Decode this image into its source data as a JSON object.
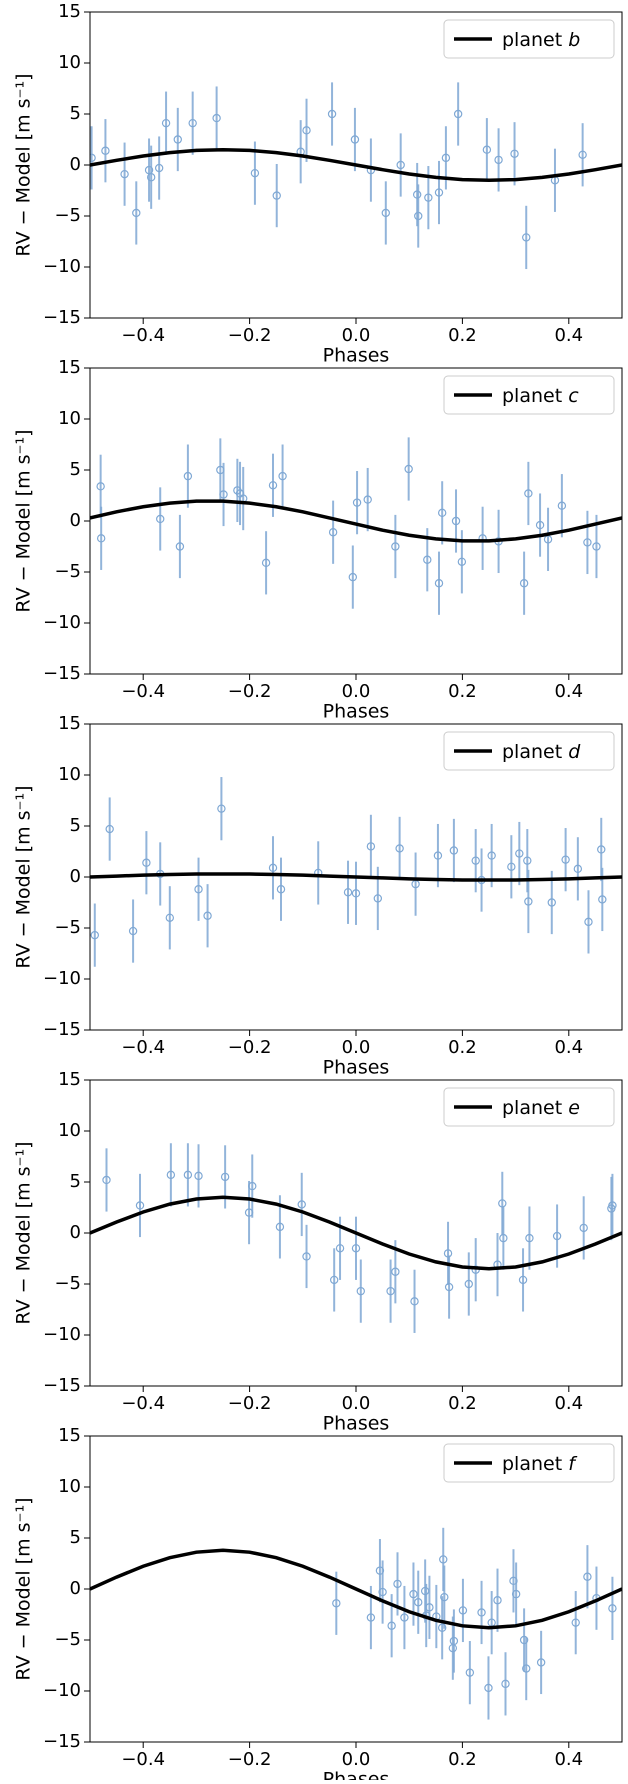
{
  "chart_data": [
    {
      "type": "scatter",
      "xlabel": "Phases",
      "ylabel": "RV − Model [m s⁻¹]",
      "xlim": [
        -0.5,
        0.5
      ],
      "ylim": [
        -15,
        15
      ],
      "xticks": [
        {
          "value": -0.4,
          "label": "−0.4"
        },
        {
          "value": -0.2,
          "label": "−0.2"
        },
        {
          "value": 0,
          "label": "0.0"
        },
        0.2,
        0.4
      ],
      "yticks": [
        {
          "value": -15,
          "label": "−15"
        },
        {
          "value": -10,
          "label": "−10"
        },
        {
          "value": -5,
          "label": "−5"
        },
        0,
        5,
        10,
        15
      ],
      "legend": "upper right",
      "points": {
        "color": "#7fa8d4",
        "x": [
          -0.497,
          -0.471,
          -0.435,
          -0.413,
          -0.389,
          -0.385,
          -0.37,
          -0.357,
          -0.335,
          -0.307,
          -0.262,
          -0.19,
          -0.149,
          -0.104,
          -0.093,
          -0.045,
          -0.002,
          0.028,
          0.056,
          0.084,
          0.115,
          0.117,
          0.136,
          0.156,
          0.169,
          0.192,
          0.246,
          0.268,
          0.298,
          0.32,
          0.374,
          0.426
        ],
        "values": [
          0.7,
          1.4,
          -0.9,
          -4.7,
          -0.5,
          -1.2,
          -0.3,
          4.1,
          2.5,
          4.1,
          4.6,
          -0.8,
          -3.0,
          1.3,
          3.4,
          5.0,
          2.5,
          -0.5,
          -4.7,
          0,
          -2.9,
          -5.0,
          -3.2,
          -2.7,
          0.7,
          5.0,
          1.5,
          0.5,
          1.1,
          -7.1,
          -1.5,
          1.0
        ],
        "errors": [
          3.1,
          3.1,
          3.1,
          3.1,
          3.1,
          3.1,
          3.1,
          3.1,
          3.1,
          3.1,
          3.1,
          3.1,
          3.1,
          3.1,
          3.1,
          3.1,
          3.1,
          3.1,
          3.1,
          3.1,
          3.1,
          3.1,
          3.1,
          3.1,
          3.1,
          3.1,
          3.1,
          3.1,
          3.1,
          3.1,
          3.1,
          3.1
        ]
      },
      "line": {
        "name": "planet b",
        "color": "#000000",
        "x": [
          -0.5,
          -0.45,
          -0.4,
          -0.35,
          -0.3,
          -0.25,
          -0.2,
          -0.15,
          -0.1,
          -0.05,
          0,
          0.05,
          0.1,
          0.15,
          0.2,
          0.25,
          0.3,
          0.35,
          0.4,
          0.45,
          0.5
        ],
        "values": [
          0,
          0.46,
          0.88,
          1.21,
          1.43,
          1.5,
          1.43,
          1.21,
          0.88,
          0.46,
          0,
          -0.46,
          -0.88,
          -1.21,
          -1.43,
          -1.5,
          -1.43,
          -1.21,
          -0.88,
          -0.46,
          0
        ]
      }
    },
    {
      "type": "scatter",
      "xlabel": "Phases",
      "ylabel": "RV − Model [m s⁻¹]",
      "xlim": [
        -0.5,
        0.5
      ],
      "ylim": [
        -15,
        15
      ],
      "xticks": [
        {
          "value": -0.4,
          "label": "−0.4"
        },
        {
          "value": -0.2,
          "label": "−0.2"
        },
        {
          "value": 0,
          "label": "0.0"
        },
        0.2,
        0.4
      ],
      "yticks": [
        {
          "value": -15,
          "label": "−15"
        },
        {
          "value": -10,
          "label": "−10"
        },
        {
          "value": -5,
          "label": "−5"
        },
        0,
        5,
        10,
        15
      ],
      "legend": "upper right",
      "points": {
        "color": "#7fa8d4",
        "x": [
          -0.48,
          -0.479,
          -0.368,
          -0.331,
          -0.316,
          -0.255,
          -0.249,
          -0.223,
          -0.218,
          -0.212,
          -0.169,
          -0.156,
          -0.138,
          -0.043,
          -0.006,
          0.002,
          0.022,
          0.074,
          0.099,
          0.134,
          0.156,
          0.162,
          0.188,
          0.199,
          0.238,
          0.268,
          0.316,
          0.324,
          0.346,
          0.361,
          0.387,
          0.435,
          0.452
        ],
        "values": [
          3.4,
          -1.7,
          0.2,
          -2.5,
          4.4,
          5.0,
          2.6,
          3.0,
          2.7,
          2.2,
          -4.1,
          3.5,
          4.4,
          -1.1,
          -5.5,
          1.8,
          2.1,
          -2.5,
          5.1,
          -3.8,
          -6.1,
          0.8,
          0,
          -4.0,
          -1.7,
          -2.0,
          -6.1,
          2.7,
          -0.4,
          -1.8,
          1.5,
          -2.1,
          -2.5
        ],
        "errors": [
          3.1,
          3.1,
          3.1,
          3.1,
          3.1,
          3.1,
          3.1,
          3.1,
          3.1,
          3.1,
          3.1,
          3.1,
          3.1,
          3.1,
          3.1,
          3.1,
          3.1,
          3.1,
          3.1,
          3.1,
          3.1,
          3.1,
          3.1,
          3.1,
          3.1,
          3.1,
          3.1,
          3.1,
          3.1,
          3.1,
          3.1,
          3.1,
          3.1
        ]
      },
      "line": {
        "name": "planet c",
        "color": "#000000",
        "x": [
          -0.5,
          -0.45,
          -0.4,
          -0.35,
          -0.3,
          -0.25,
          -0.2,
          -0.15,
          -0.1,
          -0.05,
          0,
          0.05,
          0.1,
          0.15,
          0.2,
          0.25,
          0.3,
          0.35,
          0.4,
          0.45,
          0.5
        ],
        "values": [
          0.3,
          0.9,
          1.4,
          1.75,
          1.95,
          1.95,
          1.75,
          1.4,
          0.9,
          0.3,
          -0.3,
          -0.9,
          -1.4,
          -1.75,
          -1.95,
          -1.95,
          -1.75,
          -1.4,
          -0.9,
          -0.3,
          0.3
        ]
      }
    },
    {
      "type": "scatter",
      "xlabel": "Phases",
      "ylabel": "RV − Model [m s⁻¹]",
      "xlim": [
        -0.5,
        0.5
      ],
      "ylim": [
        -15,
        15
      ],
      "xticks": [
        {
          "value": -0.4,
          "label": "−0.4"
        },
        {
          "value": -0.2,
          "label": "−0.2"
        },
        {
          "value": 0,
          "label": "0.0"
        },
        0.2,
        0.4
      ],
      "yticks": [
        {
          "value": -15,
          "label": "−15"
        },
        {
          "value": -10,
          "label": "−10"
        },
        {
          "value": -5,
          "label": "−5"
        },
        0,
        5,
        10,
        15
      ],
      "legend": "upper right",
      "points": {
        "color": "#7fa8d4",
        "x": [
          -0.491,
          -0.463,
          -0.419,
          -0.394,
          -0.368,
          -0.35,
          -0.296,
          -0.279,
          -0.253,
          -0.156,
          -0.141,
          -0.071,
          -0.015,
          0,
          0.028,
          0.041,
          0.082,
          0.112,
          0.154,
          0.184,
          0.225,
          0.236,
          0.255,
          0.292,
          0.307,
          0.322,
          0.324,
          0.368,
          0.394,
          0.417,
          0.437,
          0.461,
          0.463
        ],
        "values": [
          -5.7,
          4.7,
          -5.3,
          1.4,
          0.3,
          -4.0,
          -1.2,
          -3.8,
          6.7,
          0.9,
          -1.2,
          0.4,
          -1.5,
          -1.6,
          3.0,
          -2.1,
          2.8,
          -0.7,
          2.1,
          2.6,
          1.6,
          -0.3,
          2.1,
          1.0,
          2.3,
          1.6,
          -2.4,
          -2.5,
          1.7,
          0.8,
          -4.4,
          2.7,
          -2.2
        ],
        "errors": [
          3.1,
          3.1,
          3.1,
          3.1,
          3.1,
          3.1,
          3.1,
          3.1,
          3.1,
          3.1,
          3.1,
          3.1,
          3.1,
          3.1,
          3.1,
          3.1,
          3.1,
          3.1,
          3.1,
          3.1,
          3.1,
          3.1,
          3.1,
          3.1,
          3.1,
          3.1,
          3.1,
          3.1,
          3.1,
          3.1,
          3.1,
          3.1,
          3.1
        ]
      },
      "line": {
        "name": "planet d",
        "color": "#000000",
        "x": [
          -0.5,
          -0.45,
          -0.4,
          -0.35,
          -0.3,
          -0.25,
          -0.2,
          -0.15,
          -0.1,
          -0.05,
          0,
          0.05,
          0.1,
          0.15,
          0.2,
          0.25,
          0.3,
          0.35,
          0.4,
          0.45,
          0.5
        ],
        "values": [
          0,
          0.09,
          0.18,
          0.24,
          0.29,
          0.3,
          0.29,
          0.24,
          0.18,
          0.09,
          0,
          -0.09,
          -0.18,
          -0.24,
          -0.29,
          -0.3,
          -0.29,
          -0.24,
          -0.18,
          -0.09,
          0
        ]
      }
    },
    {
      "type": "scatter",
      "xlabel": "Phases",
      "ylabel": "RV − Model [m s⁻¹]",
      "xlim": [
        -0.5,
        0.5
      ],
      "ylim": [
        -15,
        15
      ],
      "xticks": [
        {
          "value": -0.4,
          "label": "−0.4"
        },
        {
          "value": -0.2,
          "label": "−0.2"
        },
        {
          "value": 0,
          "label": "0.0"
        },
        0.2,
        0.4
      ],
      "yticks": [
        {
          "value": -15,
          "label": "−15"
        },
        {
          "value": -10,
          "label": "−10"
        },
        {
          "value": -5,
          "label": "−5"
        },
        0,
        5,
        10,
        15
      ],
      "legend": "upper right",
      "points": {
        "color": "#7fa8d4",
        "x": [
          -0.469,
          -0.406,
          -0.348,
          -0.316,
          -0.296,
          -0.246,
          -0.201,
          -0.195,
          -0.143,
          -0.102,
          -0.093,
          -0.041,
          -0.03,
          0,
          0.009,
          0.065,
          0.074,
          0.11,
          0.173,
          0.175,
          0.212,
          0.225,
          0.266,
          0.275,
          0.277,
          0.314,
          0.326,
          0.378,
          0.428,
          0.48,
          0.482
        ],
        "values": [
          5.2,
          2.7,
          5.7,
          5.7,
          5.6,
          5.5,
          2.0,
          4.6,
          0.6,
          2.8,
          -2.3,
          -4.6,
          -1.5,
          -1.5,
          -5.7,
          -5.7,
          -3.8,
          -6.7,
          -2.0,
          -5.3,
          -5.0,
          -3.6,
          -3.1,
          2.9,
          -0.5,
          -4.6,
          -0.5,
          -0.3,
          0.5,
          2.4,
          2.7
        ],
        "errors": [
          3.1,
          3.1,
          3.1,
          3.1,
          3.1,
          3.1,
          3.1,
          3.1,
          3.1,
          3.1,
          3.1,
          3.1,
          3.1,
          3.1,
          3.1,
          3.1,
          3.1,
          3.1,
          3.1,
          3.1,
          3.1,
          3.1,
          3.1,
          3.1,
          3.1,
          3.1,
          3.1,
          3.1,
          3.1,
          3.1,
          3.1
        ]
      },
      "line": {
        "name": "planet e",
        "color": "#000000",
        "x": [
          -0.5,
          -0.45,
          -0.4,
          -0.35,
          -0.3,
          -0.25,
          -0.2,
          -0.15,
          -0.1,
          -0.05,
          0,
          0.05,
          0.1,
          0.15,
          0.2,
          0.25,
          0.3,
          0.35,
          0.4,
          0.45,
          0.5
        ],
        "values": [
          0,
          1.08,
          2.06,
          2.83,
          3.33,
          3.5,
          3.33,
          2.83,
          2.06,
          1.08,
          0,
          -1.08,
          -2.06,
          -2.83,
          -3.33,
          -3.5,
          -3.33,
          -2.83,
          -2.06,
          -1.08,
          0
        ]
      }
    },
    {
      "type": "scatter",
      "xlabel": "Phases",
      "ylabel": "RV − Model [m s⁻¹]",
      "xlim": [
        -0.5,
        0.5
      ],
      "ylim": [
        -15,
        15
      ],
      "xticks": [
        {
          "value": -0.4,
          "label": "−0.4"
        },
        {
          "value": -0.2,
          "label": "−0.2"
        },
        {
          "value": 0,
          "label": "0.0"
        },
        0.2,
        0.4
      ],
      "yticks": [
        {
          "value": -15,
          "label": "−15"
        },
        {
          "value": -10,
          "label": "−10"
        },
        {
          "value": -5,
          "label": "−5"
        },
        0,
        5,
        10,
        15
      ],
      "legend": "upper right",
      "points": {
        "color": "#7fa8d4",
        "x": [
          -0.037,
          0.028,
          0.045,
          0.05,
          0.067,
          0.078,
          0.091,
          0.108,
          0.117,
          0.13,
          0.132,
          0.138,
          0.151,
          0.162,
          0.164,
          0.166,
          0.182,
          0.184,
          0.201,
          0.214,
          0.236,
          0.249,
          0.255,
          0.266,
          0.281,
          0.296,
          0.301,
          0.316,
          0.32,
          0.348,
          0.413,
          0.435,
          0.452,
          0.482
        ],
        "values": [
          -1.4,
          -2.8,
          1.8,
          -0.3,
          -3.6,
          0.5,
          -2.8,
          -0.5,
          -1.3,
          -0.2,
          -2.6,
          -1.8,
          -2.7,
          -3.8,
          2.9,
          -0.8,
          -5.8,
          -5.1,
          -2.1,
          -8.2,
          -2.3,
          -9.7,
          -3.3,
          -1.1,
          -9.3,
          0.8,
          -0.5,
          -5.0,
          -7.8,
          -7.2,
          -3.3,
          1.2,
          -0.9,
          -1.9
        ],
        "errors": [
          3.1,
          3.1,
          3.1,
          3.1,
          3.1,
          3.1,
          3.1,
          3.1,
          3.1,
          3.1,
          3.1,
          3.1,
          3.1,
          3.1,
          3.1,
          3.1,
          3.1,
          3.1,
          3.1,
          3.1,
          3.1,
          3.1,
          3.1,
          3.1,
          3.1,
          3.1,
          3.1,
          3.1,
          3.1,
          3.1,
          3.1,
          3.1,
          3.1,
          3.1
        ]
      },
      "line": {
        "name": "planet f",
        "color": "#000000",
        "x": [
          -0.5,
          -0.45,
          -0.4,
          -0.35,
          -0.3,
          -0.25,
          -0.2,
          -0.15,
          -0.1,
          -0.05,
          0,
          0.05,
          0.1,
          0.15,
          0.2,
          0.25,
          0.3,
          0.35,
          0.4,
          0.45,
          0.5
        ],
        "values": [
          0,
          1.17,
          2.23,
          3.07,
          3.61,
          3.8,
          3.61,
          3.07,
          2.23,
          1.17,
          0,
          -1.17,
          -2.23,
          -3.07,
          -3.61,
          -3.8,
          -3.61,
          -3.07,
          -2.23,
          -1.17,
          0
        ]
      }
    }
  ]
}
